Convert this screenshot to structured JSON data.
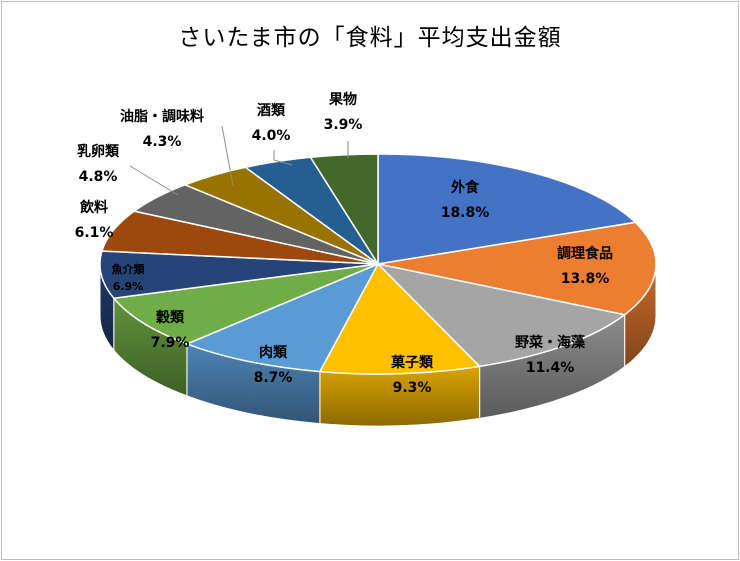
{
  "title": "さいたま市の「食料」平均支出金額",
  "chart_data": {
    "type": "pie",
    "title": "さいたま市の「食料」平均支出金額",
    "slices": [
      {
        "label": "外食",
        "value": 18.8,
        "value_text": "18.8%",
        "color": "#4472C4"
      },
      {
        "label": "調理食品",
        "value": 13.8,
        "value_text": "13.8%",
        "color": "#ED7D31"
      },
      {
        "label": "野菜・海藻",
        "value": 11.4,
        "value_text": "11.4%",
        "color": "#A5A5A5"
      },
      {
        "label": "菓子類",
        "value": 9.3,
        "value_text": "9.3%",
        "color": "#FFC000"
      },
      {
        "label": "肉類",
        "value": 8.7,
        "value_text": "8.7%",
        "color": "#5B9BD5"
      },
      {
        "label": "穀類",
        "value": 7.9,
        "value_text": "7.9%",
        "color": "#70AD47"
      },
      {
        "label": "魚介類",
        "value": 6.9,
        "value_text": "6.9%",
        "color": "#264478"
      },
      {
        "label": "飲料",
        "value": 6.1,
        "value_text": "6.1%",
        "color": "#9E480E"
      },
      {
        "label": "乳卵類",
        "value": 4.8,
        "value_text": "4.8%",
        "color": "#636363"
      },
      {
        "label": "油脂・調味料",
        "value": 4.3,
        "value_text": "4.3%",
        "color": "#997300"
      },
      {
        "label": "酒類",
        "value": 4.0,
        "value_text": "4.0%",
        "color": "#255E91"
      },
      {
        "label": "果物",
        "value": 3.9,
        "value_text": "3.9%",
        "color": "#43682B"
      }
    ],
    "start_angle_deg": 0,
    "direction": "clockwise",
    "style": "3d-pie",
    "legend": "none",
    "data_labels": "label-and-percent"
  }
}
